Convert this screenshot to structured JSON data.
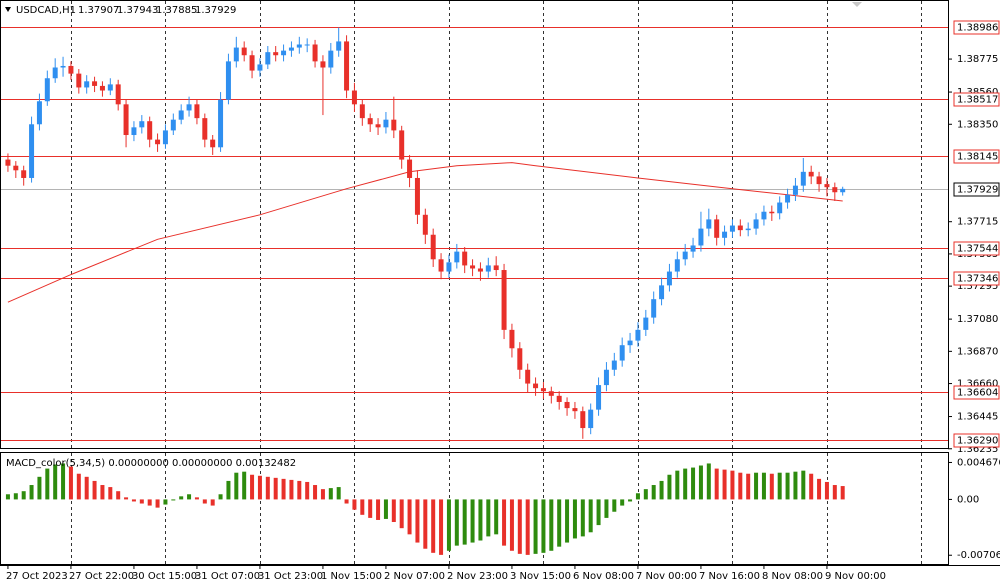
{
  "chart_data": [
    {
      "type": "candlestick",
      "symbol": "USDCAD,H1",
      "header_open": 1.37907,
      "header_high": 1.37943,
      "header_low": 1.37885,
      "header_close": 1.37929,
      "xlim": [
        -0.5,
        119.5
      ],
      "xgrid": [
        8,
        20,
        32,
        44,
        56,
        68,
        80,
        92,
        104,
        116
      ],
      "xticks": [
        {
          "value": 0,
          "label": "27 Oct 2023"
        },
        {
          "value": 8,
          "label": "27 Oct 22:00"
        },
        {
          "value": 16,
          "label": "30 Oct 15:00"
        },
        {
          "value": 24,
          "label": "31 Oct 07:00"
        },
        {
          "value": 32,
          "label": "31 Oct 23:00"
        },
        {
          "value": 40,
          "label": "1 Nov 15:00"
        },
        {
          "value": 48,
          "label": "2 Nov 07:00"
        },
        {
          "value": 56,
          "label": "2 Nov 23:00"
        },
        {
          "value": 64,
          "label": "3 Nov 15:00"
        },
        {
          "value": 72,
          "label": "6 Nov 08:00"
        },
        {
          "value": 80,
          "label": "7 Nov 00:00"
        },
        {
          "value": 88,
          "label": "7 Nov 16:00"
        },
        {
          "value": 96,
          "label": "8 Nov 08:00"
        },
        {
          "value": 104,
          "label": "9 Nov 00:00"
        }
      ],
      "ylim": [
        1.3624,
        1.3916
      ],
      "yticks": [
        1.38775,
        {
          "value": 1.3856,
          "label": "1.38560"
        },
        {
          "value": 1.3835,
          "label": "1.38350"
        },
        1.37715,
        1.37505,
        1.37295,
        {
          "value": 1.3708,
          "label": "1.37080"
        },
        {
          "value": 1.3687,
          "label": "1.36870"
        },
        {
          "value": 1.3666,
          "label": "1.36660"
        },
        1.36445,
        1.36235
      ],
      "levels": [
        1.38986,
        1.38517,
        1.38145,
        1.37544,
        1.37346,
        1.36604,
        {
          "value": 1.3629,
          "label": "1.36290"
        }
      ],
      "level_color": "#e8302a",
      "bull_color": "#2f8ff0",
      "bear_color": "#e8302a",
      "open": [
        1.3812,
        1.3808,
        1.3805,
        1.38,
        1.3835,
        1.385,
        1.3865,
        1.3872,
        1.3873,
        1.3868,
        1.3859,
        1.3863,
        1.386,
        1.3857,
        1.3861,
        1.3848,
        1.3828,
        1.3833,
        1.3837,
        1.3825,
        1.3822,
        1.3831,
        1.3838,
        1.3844,
        1.3848,
        1.3839,
        1.3825,
        1.382,
        1.3851,
        1.3876,
        1.3885,
        1.388,
        1.387,
        1.3874,
        1.3882,
        1.388,
        1.3883,
        1.3885,
        1.3887,
        1.3887,
        1.3876,
        1.3872,
        1.3883,
        1.3889,
        1.3857,
        1.3848,
        1.3839,
        1.3835,
        1.3833,
        1.3838,
        1.3831,
        1.3812,
        1.38,
        1.3776,
        1.3763,
        1.3747,
        1.3739,
        1.3745,
        1.3752,
        1.3743,
        1.3741,
        1.3739,
        1.3743,
        1.374,
        1.3701,
        1.3689,
        1.3675,
        1.3666,
        1.3663,
        1.3661,
        1.3658,
        1.3654,
        1.365,
        1.3648,
        1.3637,
        1.3649,
        1.3665,
        1.3675,
        1.3681,
        1.3691,
        1.3694,
        1.3701,
        1.3709,
        1.3721,
        1.373,
        1.3739,
        1.3747,
        1.3752,
        1.3756,
        1.3767,
        1.3773,
        1.3761,
        1.3765,
        1.3769,
        1.3766,
        1.3767,
        1.3773,
        1.3778,
        1.3777,
        1.3784,
        1.3789,
        1.3795,
        1.3804,
        1.3801,
        1.3796,
        1.3794,
        1.37907
      ],
      "high": [
        1.3816,
        1.3811,
        1.3808,
        1.384,
        1.3855,
        1.387,
        1.3878,
        1.3879,
        1.3876,
        1.3871,
        1.3867,
        1.3866,
        1.3863,
        1.3865,
        1.3864,
        1.3851,
        1.3837,
        1.3841,
        1.384,
        1.3829,
        1.3835,
        1.3842,
        1.3848,
        1.3853,
        1.3851,
        1.3842,
        1.3828,
        1.3856,
        1.3881,
        1.3892,
        1.3889,
        1.3883,
        1.3878,
        1.3886,
        1.3886,
        1.3887,
        1.3889,
        1.3892,
        1.3891,
        1.389,
        1.388,
        1.3888,
        1.3898,
        1.3893,
        1.3862,
        1.3851,
        1.3842,
        1.3839,
        1.3843,
        1.3853,
        1.3834,
        1.3815,
        1.3805,
        1.378,
        1.3767,
        1.3751,
        1.375,
        1.3757,
        1.3755,
        1.3747,
        1.3745,
        1.3748,
        1.3749,
        1.3744,
        1.3705,
        1.3693,
        1.3679,
        1.367,
        1.3667,
        1.3664,
        1.3661,
        1.3657,
        1.3654,
        1.3651,
        1.3653,
        1.367,
        1.368,
        1.3686,
        1.3696,
        1.3699,
        1.3706,
        1.3714,
        1.3726,
        1.3735,
        1.3744,
        1.3752,
        1.3757,
        1.3761,
        1.3778,
        1.378,
        1.3776,
        1.3769,
        1.3773,
        1.3773,
        1.3771,
        1.3777,
        1.3782,
        1.3782,
        1.3788,
        1.3793,
        1.38,
        1.3813,
        1.3808,
        1.3804,
        1.38,
        1.3797,
        1.37943
      ],
      "low": [
        1.3804,
        1.38,
        1.3795,
        1.3797,
        1.3831,
        1.3847,
        1.3862,
        1.3866,
        1.3864,
        1.3855,
        1.3855,
        1.3856,
        1.3853,
        1.3854,
        1.3844,
        1.382,
        1.3824,
        1.3829,
        1.382,
        1.3817,
        1.3819,
        1.3828,
        1.3835,
        1.384,
        1.3835,
        1.382,
        1.3815,
        1.3817,
        1.3848,
        1.3872,
        1.3876,
        1.3865,
        1.3866,
        1.3871,
        1.3876,
        1.3876,
        1.3879,
        1.3881,
        1.3882,
        1.3872,
        1.3841,
        1.3868,
        1.3879,
        1.3852,
        1.3843,
        1.3834,
        1.383,
        1.3828,
        1.3829,
        1.3826,
        1.3806,
        1.3794,
        1.377,
        1.3757,
        1.3742,
        1.3734,
        1.3735,
        1.3741,
        1.3738,
        1.3736,
        1.3733,
        1.3735,
        1.3736,
        1.3695,
        1.3683,
        1.3669,
        1.366,
        1.3658,
        1.3656,
        1.3653,
        1.3649,
        1.3645,
        1.3643,
        1.363,
        1.3633,
        1.3645,
        1.3661,
        1.3671,
        1.3677,
        1.3686,
        1.369,
        1.3697,
        1.3705,
        1.3717,
        1.3726,
        1.3735,
        1.3743,
        1.3748,
        1.3752,
        1.3762,
        1.3756,
        1.3756,
        1.3761,
        1.3762,
        1.3762,
        1.3763,
        1.3769,
        1.3772,
        1.3773,
        1.378,
        1.3785,
        1.3791,
        1.3796,
        1.3791,
        1.3788,
        1.3785,
        1.37885
      ],
      "close": [
        1.3808,
        1.3805,
        1.38,
        1.3835,
        1.385,
        1.3865,
        1.3872,
        1.3873,
        1.3868,
        1.3859,
        1.3863,
        1.386,
        1.3857,
        1.3861,
        1.3848,
        1.3828,
        1.3833,
        1.3837,
        1.3825,
        1.3822,
        1.3831,
        1.3838,
        1.3844,
        1.3848,
        1.3839,
        1.3825,
        1.382,
        1.3851,
        1.3876,
        1.3885,
        1.388,
        1.387,
        1.3874,
        1.3882,
        1.388,
        1.3883,
        1.3885,
        1.3887,
        1.3887,
        1.3876,
        1.3872,
        1.3883,
        1.3889,
        1.3857,
        1.3848,
        1.3839,
        1.3835,
        1.3833,
        1.3838,
        1.3831,
        1.3812,
        1.38,
        1.3776,
        1.3763,
        1.3747,
        1.3739,
        1.3745,
        1.3752,
        1.3743,
        1.3741,
        1.3739,
        1.3743,
        1.374,
        1.3701,
        1.3689,
        1.3675,
        1.3666,
        1.3663,
        1.3661,
        1.3658,
        1.3654,
        1.365,
        1.3648,
        1.3637,
        1.3649,
        1.3665,
        1.3675,
        1.3681,
        1.3691,
        1.3694,
        1.3701,
        1.3709,
        1.3721,
        1.373,
        1.3739,
        1.3747,
        1.3752,
        1.3756,
        1.3767,
        1.3773,
        1.3761,
        1.3765,
        1.3769,
        1.3766,
        1.3767,
        1.3773,
        1.3778,
        1.3777,
        1.3784,
        1.3789,
        1.3795,
        1.3804,
        1.3801,
        1.3796,
        1.3794,
        1.37907,
        1.37929
      ],
      "ma": {
        "color": "#e8302a",
        "x": [
          0,
          8,
          19,
          32,
          43,
          51,
          57,
          64,
          67,
          80,
          92,
          99,
          106
        ],
        "values": [
          1.3719,
          1.3737,
          1.376,
          1.3776,
          1.3793,
          1.3804,
          1.3808,
          1.381,
          1.3808,
          1.38,
          1.3793,
          1.3789,
          1.3785
        ]
      }
    },
    {
      "type": "histogram_macd",
      "title": "MACD_color(5,34,5) 0.00000000 0.00000000 0.00132482",
      "ylim": [
        -0.0083,
        0.006
      ],
      "yticks": [
        0.0046766,
        {
          "value": 0,
          "label": "0.00"
        },
        {
          "value": -0.007064,
          "label": "-0.0070640"
        }
      ],
      "up_color": "#2e8b0e",
      "down_color": "#e8302a",
      "values": [
        0.00065,
        0.00078,
        0.00104,
        0.00182,
        0.00286,
        0.0039,
        0.00442,
        0.00455,
        0.00416,
        0.00325,
        0.00286,
        0.00234,
        0.00182,
        0.00156,
        0.00104,
        0.00026,
        -0.00026,
        -0.00052,
        -0.00078,
        -0.00104,
        -0.00065,
        -0.00013,
        0.00039,
        0.00065,
        0.00026,
        -0.00052,
        -0.00078,
        0.00065,
        0.00234,
        0.00338,
        0.00351,
        0.00312,
        0.00299,
        0.00286,
        0.00273,
        0.0026,
        0.00247,
        0.00234,
        0.00221,
        0.00182,
        0.0013,
        0.00143,
        0.00156,
        -0.00052,
        -0.0013,
        -0.00195,
        -0.00234,
        -0.0026,
        -0.00247,
        -0.00286,
        -0.00364,
        -0.00442,
        -0.00546,
        -0.00624,
        -0.00676,
        -0.00702,
        -0.0065,
        -0.00585,
        -0.00572,
        -0.00546,
        -0.0052,
        -0.00468,
        -0.00442,
        -0.00585,
        -0.0065,
        -0.00689,
        -0.00702,
        -0.00689,
        -0.00676,
        -0.0065,
        -0.00598,
        -0.00546,
        -0.00494,
        -0.00468,
        -0.00416,
        -0.00325,
        -0.00234,
        -0.00156,
        -0.00078,
        -0.00026,
        0.00078,
        0.0013,
        0.00182,
        0.00234,
        0.00312,
        0.00364,
        0.0039,
        0.00403,
        0.00429,
        0.00455,
        0.0039,
        0.00377,
        0.00364,
        0.00338,
        0.00325,
        0.00338,
        0.00338,
        0.00325,
        0.00338,
        0.00338,
        0.00351,
        0.00364,
        0.00325,
        0.0026,
        0.00221,
        0.00182,
        0.00169
      ]
    }
  ]
}
